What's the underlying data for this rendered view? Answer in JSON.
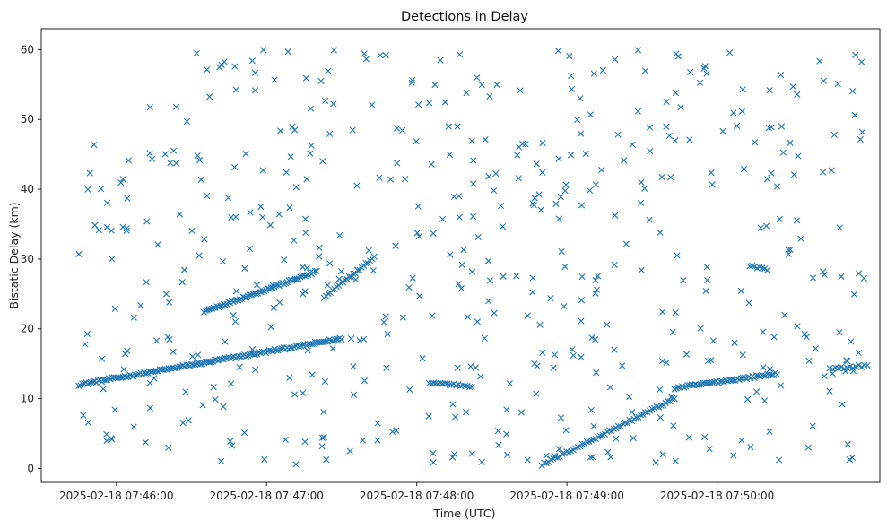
{
  "chart_data": {
    "type": "scatter",
    "title": "Detections in Delay",
    "xlabel": "Time (UTC)",
    "ylabel": "Bistatic Delay (km)",
    "x_unit": "seconds since 2025-02-18 07:45:45",
    "xlim": [
      -15,
      320
    ],
    "ylim": [
      -2,
      63
    ],
    "x_ticks": [
      {
        "value": 15,
        "label": "2025-02-18 07:46:00"
      },
      {
        "value": 75,
        "label": "2025-02-18 07:47:00"
      },
      {
        "value": 135,
        "label": "2025-02-18 07:48:00"
      },
      {
        "value": 195,
        "label": "2025-02-18 07:49:00"
      },
      {
        "value": 255,
        "label": "2025-02-18 07:50:00"
      }
    ],
    "y_ticks": [
      0,
      10,
      20,
      30,
      40,
      50,
      60
    ],
    "marker": "x",
    "color": "#1f77b4",
    "grid": false,
    "series": [
      {
        "name": "track_main_rising",
        "x_start": 0,
        "x_end": 105,
        "y_start": 12.0,
        "y_end": 18.6,
        "count": 150
      },
      {
        "name": "track_upper_rising",
        "x_start": 50,
        "x_end": 95,
        "y_start": 22.5,
        "y_end": 28.2,
        "count": 70
      },
      {
        "name": "track_mid_segment",
        "x_start": 98,
        "x_end": 118,
        "y_start": 24.5,
        "y_end": 30.2,
        "count": 25
      },
      {
        "name": "track_flat_12",
        "x_start": 140,
        "x_end": 157,
        "y_start": 12.3,
        "y_end": 11.8,
        "count": 20
      },
      {
        "name": "track_v_rising",
        "x_start": 185,
        "x_end": 238,
        "y_start": 0.5,
        "y_end": 10.0,
        "count": 60
      },
      {
        "name": "track_late_rising",
        "x_start": 238,
        "x_end": 279,
        "y_start": 11.5,
        "y_end": 13.6,
        "count": 55
      },
      {
        "name": "track_late_flat_14",
        "x_start": 300,
        "x_end": 315,
        "y_start": 14.2,
        "y_end": 14.8,
        "count": 14
      },
      {
        "name": "track_late_flat_29",
        "x_start": 268,
        "x_end": 275,
        "y_start": 29.0,
        "y_end": 28.5,
        "count": 8
      },
      {
        "name": "clutter",
        "x_range": [
          0,
          315
        ],
        "y_range": [
          0.5,
          60
        ],
        "count": 520,
        "distribution": "uniform"
      }
    ]
  }
}
